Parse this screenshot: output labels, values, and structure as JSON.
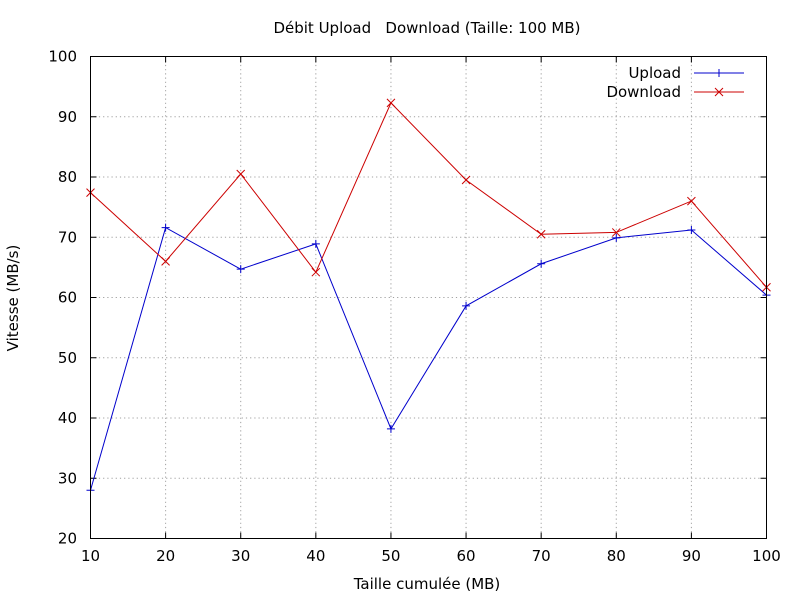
{
  "chart_data": {
    "type": "line",
    "title": "Débit Upload   Download (Taille: 100 MB)",
    "xlabel": "Taille cumulée (MB)",
    "ylabel": "Vitesse (MB/s)",
    "xlim": [
      10,
      100
    ],
    "ylim": [
      20,
      100
    ],
    "x_ticks": [
      10,
      20,
      30,
      40,
      50,
      60,
      70,
      80,
      90,
      100
    ],
    "y_ticks": [
      20,
      30,
      40,
      50,
      60,
      70,
      80,
      90,
      100
    ],
    "grid": true,
    "legend_position": "top-right",
    "x": [
      10,
      20,
      30,
      40,
      50,
      60,
      70,
      80,
      90,
      100
    ],
    "series": [
      {
        "name": "Upload",
        "color": "#0000cc",
        "marker": "plus",
        "values": [
          28.0,
          71.6,
          64.7,
          68.9,
          38.2,
          58.6,
          65.6,
          69.9,
          71.2,
          60.4
        ]
      },
      {
        "name": "Download",
        "color": "#cc0000",
        "marker": "cross",
        "values": [
          77.4,
          66.0,
          80.5,
          64.2,
          92.3,
          79.5,
          70.5,
          70.8,
          76.0,
          61.7
        ]
      }
    ]
  }
}
